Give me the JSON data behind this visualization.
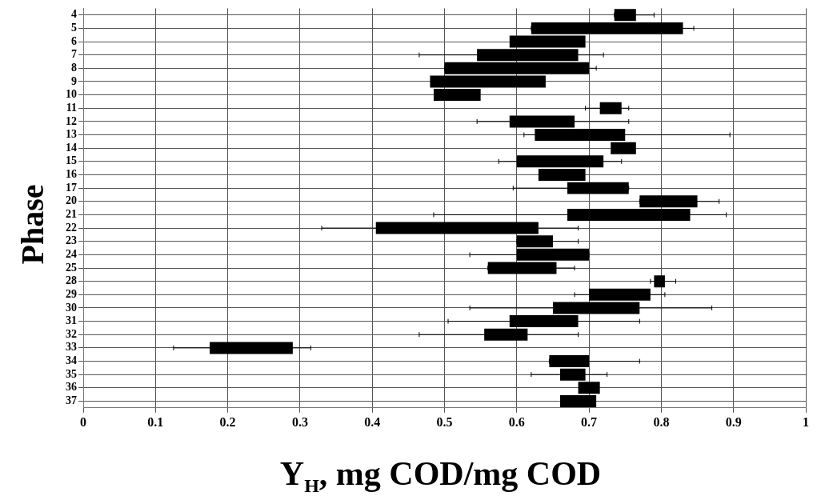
{
  "chart_data": {
    "type": "bar",
    "orientation": "horizontal",
    "xlabel": "Y$_{H}$,  mg COD/mg COD",
    "ylabel": "Phase",
    "categories": [
      "4",
      "5",
      "6",
      "7",
      "8",
      "9",
      "10",
      "11",
      "12",
      "13",
      "14",
      "15",
      "16",
      "17",
      "20",
      "21",
      "22",
      "23",
      "24",
      "25",
      "28",
      "29",
      "30",
      "31",
      "32",
      "33",
      "34",
      "35",
      "36",
      "37"
    ],
    "base": [
      0.735,
      0.62,
      0.59,
      0.545,
      0.5,
      0.48,
      0.485,
      0.715,
      0.59,
      0.625,
      0.73,
      0.6,
      0.63,
      0.67,
      0.77,
      0.67,
      0.405,
      0.6,
      0.6,
      0.56,
      0.79,
      0.7,
      0.65,
      0.59,
      0.555,
      0.175,
      0.645,
      0.66,
      0.685,
      0.66
    ],
    "values": [
      0.03,
      0.21,
      0.105,
      0.14,
      0.2,
      0.16,
      0.065,
      0.03,
      0.09,
      0.125,
      0.035,
      0.12,
      0.065,
      0.085,
      0.08,
      0.17,
      0.225,
      0.05,
      0.1,
      0.095,
      0.015,
      0.085,
      0.12,
      0.095,
      0.06,
      0.115,
      0.055,
      0.035,
      0.03,
      0.05
    ],
    "errors": [
      [
        0.735,
        0.79
      ],
      [
        0.62,
        0.845
      ],
      null,
      [
        0.465,
        0.72
      ],
      [
        0.5,
        0.71
      ],
      null,
      null,
      [
        0.695,
        0.755
      ],
      [
        0.545,
        0.755
      ],
      [
        0.61,
        0.895
      ],
      null,
      [
        0.575,
        0.745
      ],
      null,
      [
        0.595,
        0.755
      ],
      [
        0.77,
        0.88
      ],
      [
        0.485,
        0.89
      ],
      [
        0.33,
        0.685
      ],
      [
        0.6,
        0.685
      ],
      [
        0.535,
        0.7
      ],
      [
        0.56,
        0.68
      ],
      [
        0.785,
        0.82
      ],
      [
        0.68,
        0.805
      ],
      [
        0.535,
        0.87
      ],
      [
        0.505,
        0.77
      ],
      [
        0.465,
        0.685
      ],
      [
        0.125,
        0.315
      ],
      [
        0.645,
        0.77
      ],
      [
        0.62,
        0.725
      ],
      null,
      null
    ],
    "color": "#000000",
    "xlim": [
      0,
      1
    ],
    "xticks": [
      0,
      0.1,
      0.2,
      0.3,
      0.4,
      0.5,
      0.6,
      0.7,
      0.8,
      0.9,
      1
    ],
    "grid": true,
    "legend": false
  }
}
